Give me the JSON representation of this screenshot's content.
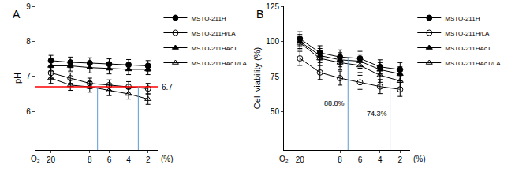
{
  "chart_data": [
    {
      "type": "line",
      "title": "A",
      "ylabel": "pH",
      "xlabel": "O₂",
      "xunit": "(%)",
      "categories": [
        "20",
        null,
        "8",
        "6",
        "4",
        "2"
      ],
      "ylim": [
        4.9,
        9
      ],
      "yticks": [
        6,
        7,
        8,
        9
      ],
      "grid": false,
      "legend": "right",
      "series": [
        {
          "name": "MSTO-211H",
          "color": "#000000",
          "marker": "circle",
          "values": [
            7.45,
            7.4,
            7.38,
            7.35,
            7.33,
            7.3
          ],
          "errors": [
            0.15,
            0.15,
            0.15,
            0.15,
            0.15,
            0.15
          ]
        },
        {
          "name": "MSTO-211H/LA",
          "color": "#000000",
          "marker": "circle-open",
          "values": [
            7.1,
            6.95,
            6.8,
            6.75,
            6.7,
            6.65
          ],
          "errors": [
            0.15,
            0.15,
            0.15,
            0.15,
            0.15,
            0.15
          ]
        },
        {
          "name": "MSTO-211HAcT",
          "color": "#000000",
          "marker": "triangle-up",
          "values": [
            7.3,
            7.3,
            7.25,
            7.22,
            7.2,
            7.2
          ],
          "errors": [
            0.15,
            0.15,
            0.15,
            0.15,
            0.15,
            0.15
          ]
        },
        {
          "name": "MSTO-211HAcT/LA",
          "color": "#000000",
          "marker": "triangle-up-open",
          "values": [
            6.95,
            6.75,
            6.7,
            6.6,
            6.5,
            6.35
          ],
          "errors": [
            0.15,
            0.15,
            0.15,
            0.15,
            0.15,
            0.15
          ]
        }
      ],
      "hline": {
        "y": 6.7,
        "label": "6.7",
        "color": "#ff0000"
      },
      "vlines": [
        {
          "x": 2.4,
          "to": 6.7,
          "color": "#5b9bd5"
        },
        {
          "x": 4.5,
          "to": 6.7,
          "color": "#5b9bd5"
        }
      ]
    },
    {
      "type": "line",
      "title": "B",
      "ylabel": "Cell viability (%)",
      "xlabel": "O₂",
      "xunit": "(%)",
      "categories": [
        "20",
        null,
        "8",
        "6",
        "4",
        "2"
      ],
      "ylim": [
        23,
        125
      ],
      "yticks": [
        50,
        75,
        100,
        125
      ],
      "grid": false,
      "legend": "right",
      "series": [
        {
          "name": "MSTO-211H",
          "color": "#000000",
          "marker": "circle",
          "values": [
            102,
            92,
            89,
            88,
            82,
            80
          ],
          "errors": [
            5,
            5,
            5,
            5,
            5,
            5
          ]
        },
        {
          "name": "MSTO-211H/LA",
          "color": "#000000",
          "marker": "circle-open",
          "values": [
            88,
            78,
            74,
            71,
            68,
            66
          ],
          "errors": [
            5,
            5,
            5,
            5,
            5,
            5
          ]
        },
        {
          "name": "MSTO-211HAcT",
          "color": "#000000",
          "marker": "triangle-up",
          "values": [
            100,
            90,
            87,
            86,
            80,
            77
          ],
          "errors": [
            5,
            5,
            5,
            5,
            5,
            5
          ]
        },
        {
          "name": "MSTO-211HAcT/LA",
          "color": "#000000",
          "marker": "triangle-up-open",
          "values": [
            99,
            88,
            85,
            83,
            76,
            72
          ],
          "errors": [
            5,
            5,
            5,
            5,
            5,
            5
          ]
        }
      ],
      "vlines": [
        {
          "x": 2.4,
          "to": 88.8,
          "label": "88.8%",
          "color": "#5b9bd5"
        },
        {
          "x": 4.5,
          "to": 74.3,
          "label": "74.3%",
          "color": "#5b9bd5"
        }
      ]
    }
  ]
}
